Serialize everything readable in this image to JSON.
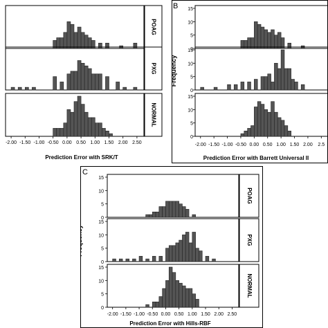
{
  "chart_data": [
    {
      "type": "bar",
      "panel_label": "",
      "xlabel": "Prediction Error with SRK/T",
      "ylabel": "",
      "x_ticks": [
        "-2.00",
        "-1.50",
        "-1.00",
        "-0.50",
        "0.00",
        "0.50",
        "1.00",
        "1.50",
        "2.00",
        "2.50"
      ],
      "xlim": [
        -2.2,
        2.75
      ],
      "bin_width": 0.125,
      "facets": [
        {
          "label": "POAG",
          "ylim": [
            0,
            15
          ],
          "y_ticks": [],
          "bars": [
            {
              "x": -0.5,
              "y": 3
            },
            {
              "x": -0.375,
              "y": 4
            },
            {
              "x": -0.25,
              "y": 4
            },
            {
              "x": -0.125,
              "y": 6
            },
            {
              "x": 0,
              "y": 10
            },
            {
              "x": 0.125,
              "y": 9
            },
            {
              "x": 0.25,
              "y": 6
            },
            {
              "x": 0.375,
              "y": 8
            },
            {
              "x": 0.5,
              "y": 6
            },
            {
              "x": 0.625,
              "y": 5
            },
            {
              "x": 0.75,
              "y": 4
            },
            {
              "x": 0.875,
              "y": 3
            },
            {
              "x": 1.125,
              "y": 2
            },
            {
              "x": 1.375,
              "y": 2
            },
            {
              "x": 1.875,
              "y": 1
            },
            {
              "x": 2.375,
              "y": 2
            }
          ]
        },
        {
          "label": "PXG",
          "ylim": [
            0,
            15
          ],
          "y_ticks": [],
          "bars": [
            {
              "x": -2.0,
              "y": 1
            },
            {
              "x": -1.75,
              "y": 1
            },
            {
              "x": -1.5,
              "y": 1
            },
            {
              "x": -1.25,
              "y": 1
            },
            {
              "x": -0.5,
              "y": 5
            },
            {
              "x": -0.25,
              "y": 3
            },
            {
              "x": 0,
              "y": 6
            },
            {
              "x": 0.125,
              "y": 7
            },
            {
              "x": 0.25,
              "y": 7
            },
            {
              "x": 0.375,
              "y": 11
            },
            {
              "x": 0.5,
              "y": 10
            },
            {
              "x": 0.625,
              "y": 9
            },
            {
              "x": 0.75,
              "y": 8
            },
            {
              "x": 0.875,
              "y": 6
            },
            {
              "x": 1.0,
              "y": 6
            },
            {
              "x": 1.125,
              "y": 6
            },
            {
              "x": 1.375,
              "y": 5
            },
            {
              "x": 1.75,
              "y": 3
            },
            {
              "x": 2.0,
              "y": 1
            },
            {
              "x": 2.375,
              "y": 1
            }
          ]
        },
        {
          "label": "NORMAL",
          "ylim": [
            0,
            15
          ],
          "y_ticks": [],
          "bars": [
            {
              "x": -0.5,
              "y": 3
            },
            {
              "x": -0.375,
              "y": 3
            },
            {
              "x": -0.25,
              "y": 3
            },
            {
              "x": -0.125,
              "y": 5
            },
            {
              "x": 0,
              "y": 10
            },
            {
              "x": 0.125,
              "y": 9
            },
            {
              "x": 0.25,
              "y": 13
            },
            {
              "x": 0.375,
              "y": 15
            },
            {
              "x": 0.5,
              "y": 12
            },
            {
              "x": 0.625,
              "y": 9
            },
            {
              "x": 0.75,
              "y": 7
            },
            {
              "x": 0.875,
              "y": 7
            },
            {
              "x": 1.0,
              "y": 5
            },
            {
              "x": 1.125,
              "y": 5
            },
            {
              "x": 1.25,
              "y": 3
            },
            {
              "x": 1.375,
              "y": 2
            },
            {
              "x": 1.5,
              "y": 1
            }
          ]
        }
      ]
    },
    {
      "type": "bar",
      "panel_label": "B",
      "xlabel": "Prediction Error with Barrett Universal II",
      "ylabel": "Frequency",
      "x_ticks": [
        "-2.00",
        "-1.50",
        "-1.00",
        "-0.50",
        "0.00",
        "0.50",
        "1.00",
        "1.50",
        "2.00",
        "2.5"
      ],
      "xlim": [
        -2.2,
        2.75
      ],
      "bin_width": 0.125,
      "facets": [
        {
          "label": "",
          "ylim": [
            0,
            15
          ],
          "y_ticks": [
            "0",
            "5",
            "10",
            "15"
          ],
          "bars": [
            {
              "x": -0.5,
              "y": 3
            },
            {
              "x": -0.375,
              "y": 3
            },
            {
              "x": -0.25,
              "y": 4
            },
            {
              "x": -0.125,
              "y": 4
            },
            {
              "x": 0,
              "y": 10
            },
            {
              "x": 0.125,
              "y": 9
            },
            {
              "x": 0.25,
              "y": 8
            },
            {
              "x": 0.375,
              "y": 7
            },
            {
              "x": 0.5,
              "y": 6
            },
            {
              "x": 0.625,
              "y": 7
            },
            {
              "x": 0.75,
              "y": 5
            },
            {
              "x": 0.875,
              "y": 6
            },
            {
              "x": 1.0,
              "y": 4
            },
            {
              "x": 1.25,
              "y": 2
            },
            {
              "x": 1.75,
              "y": 1
            }
          ]
        },
        {
          "label": "",
          "ylim": [
            0,
            15
          ],
          "y_ticks": [
            "0",
            "5",
            "10",
            "15"
          ],
          "bars": [
            {
              "x": -2.0,
              "y": 1
            },
            {
              "x": -1.5,
              "y": 1
            },
            {
              "x": -1.0,
              "y": 2
            },
            {
              "x": -0.75,
              "y": 2
            },
            {
              "x": -0.5,
              "y": 3
            },
            {
              "x": -0.25,
              "y": 3
            },
            {
              "x": 0,
              "y": 4
            },
            {
              "x": 0.25,
              "y": 5
            },
            {
              "x": 0.375,
              "y": 5
            },
            {
              "x": 0.5,
              "y": 6
            },
            {
              "x": 0.625,
              "y": 3
            },
            {
              "x": 0.75,
              "y": 10
            },
            {
              "x": 0.875,
              "y": 8
            },
            {
              "x": 1.0,
              "y": 15
            },
            {
              "x": 1.125,
              "y": 8
            },
            {
              "x": 1.25,
              "y": 8
            },
            {
              "x": 1.375,
              "y": 4
            },
            {
              "x": 1.5,
              "y": 3
            },
            {
              "x": 1.75,
              "y": 2
            }
          ]
        },
        {
          "label": "",
          "ylim": [
            0,
            15
          ],
          "y_ticks": [
            "0",
            "5",
            "10",
            "15"
          ],
          "bars": [
            {
              "x": -0.5,
              "y": 1
            },
            {
              "x": -0.375,
              "y": 2
            },
            {
              "x": -0.25,
              "y": 3
            },
            {
              "x": -0.125,
              "y": 4
            },
            {
              "x": 0,
              "y": 11
            },
            {
              "x": 0.125,
              "y": 13
            },
            {
              "x": 0.25,
              "y": 12
            },
            {
              "x": 0.375,
              "y": 10
            },
            {
              "x": 0.5,
              "y": 9
            },
            {
              "x": 0.625,
              "y": 13
            },
            {
              "x": 0.75,
              "y": 9
            },
            {
              "x": 0.875,
              "y": 7
            },
            {
              "x": 1.0,
              "y": 6
            },
            {
              "x": 1.125,
              "y": 4
            },
            {
              "x": 1.25,
              "y": 2
            }
          ]
        }
      ]
    },
    {
      "type": "bar",
      "panel_label": "C",
      "xlabel": "Prediction Error with Hills-RBF",
      "ylabel": "Frequency",
      "x_ticks": [
        "-2.00",
        "-1.50",
        "-1.00",
        "-0.50",
        "0.00",
        "0.50",
        "1.00",
        "1.50",
        "2.00",
        "2.50"
      ],
      "xlim": [
        -2.2,
        2.75
      ],
      "bin_width": 0.125,
      "facets": [
        {
          "label": "POAG",
          "ylim": [
            0,
            15
          ],
          "y_ticks": [
            "0",
            "5",
            "10",
            "15"
          ],
          "bars": [
            {
              "x": -0.75,
              "y": 1
            },
            {
              "x": -0.625,
              "y": 1
            },
            {
              "x": -0.5,
              "y": 2
            },
            {
              "x": -0.375,
              "y": 2
            },
            {
              "x": -0.25,
              "y": 4
            },
            {
              "x": -0.125,
              "y": 4
            },
            {
              "x": 0,
              "y": 6
            },
            {
              "x": 0.125,
              "y": 6
            },
            {
              "x": 0.25,
              "y": 6
            },
            {
              "x": 0.375,
              "y": 6
            },
            {
              "x": 0.5,
              "y": 5
            },
            {
              "x": 0.625,
              "y": 4
            },
            {
              "x": 0.75,
              "y": 3
            },
            {
              "x": 1.0,
              "y": 1
            }
          ]
        },
        {
          "label": "PXG",
          "ylim": [
            0,
            15
          ],
          "y_ticks": [
            "0",
            "5",
            "10",
            "15"
          ],
          "bars": [
            {
              "x": -2.0,
              "y": 1
            },
            {
              "x": -1.75,
              "y": 1
            },
            {
              "x": -1.5,
              "y": 1
            },
            {
              "x": -1.25,
              "y": 1
            },
            {
              "x": -1.0,
              "y": 2
            },
            {
              "x": -0.75,
              "y": 1
            },
            {
              "x": -0.5,
              "y": 2
            },
            {
              "x": -0.25,
              "y": 2
            },
            {
              "x": 0,
              "y": 5
            },
            {
              "x": 0.125,
              "y": 6
            },
            {
              "x": 0.25,
              "y": 6
            },
            {
              "x": 0.375,
              "y": 7
            },
            {
              "x": 0.5,
              "y": 8
            },
            {
              "x": 0.625,
              "y": 10
            },
            {
              "x": 0.75,
              "y": 11
            },
            {
              "x": 0.875,
              "y": 7
            },
            {
              "x": 1.0,
              "y": 11
            },
            {
              "x": 1.125,
              "y": 5
            },
            {
              "x": 1.25,
              "y": 4
            },
            {
              "x": 1.5,
              "y": 2
            },
            {
              "x": 1.75,
              "y": 1
            }
          ]
        },
        {
          "label": "NORMAL",
          "ylim": [
            0,
            15
          ],
          "y_ticks": [
            "0",
            "5",
            "10",
            "15"
          ],
          "bars": [
            {
              "x": -0.75,
              "y": 1
            },
            {
              "x": -0.5,
              "y": 2
            },
            {
              "x": -0.375,
              "y": 2
            },
            {
              "x": -0.25,
              "y": 4
            },
            {
              "x": -0.125,
              "y": 7
            },
            {
              "x": 0,
              "y": 10
            },
            {
              "x": 0.125,
              "y": 15
            },
            {
              "x": 0.25,
              "y": 13
            },
            {
              "x": 0.375,
              "y": 10
            },
            {
              "x": 0.5,
              "y": 9
            },
            {
              "x": 0.625,
              "y": 8
            },
            {
              "x": 0.75,
              "y": 7
            },
            {
              "x": 0.875,
              "y": 7
            },
            {
              "x": 1.0,
              "y": 5
            },
            {
              "x": 1.125,
              "y": 3
            }
          ]
        }
      ]
    }
  ],
  "style": {
    "bar_fill": "#555555",
    "bar_stroke": "#222222",
    "frame_stroke": "#000000",
    "background": "#ffffff"
  }
}
